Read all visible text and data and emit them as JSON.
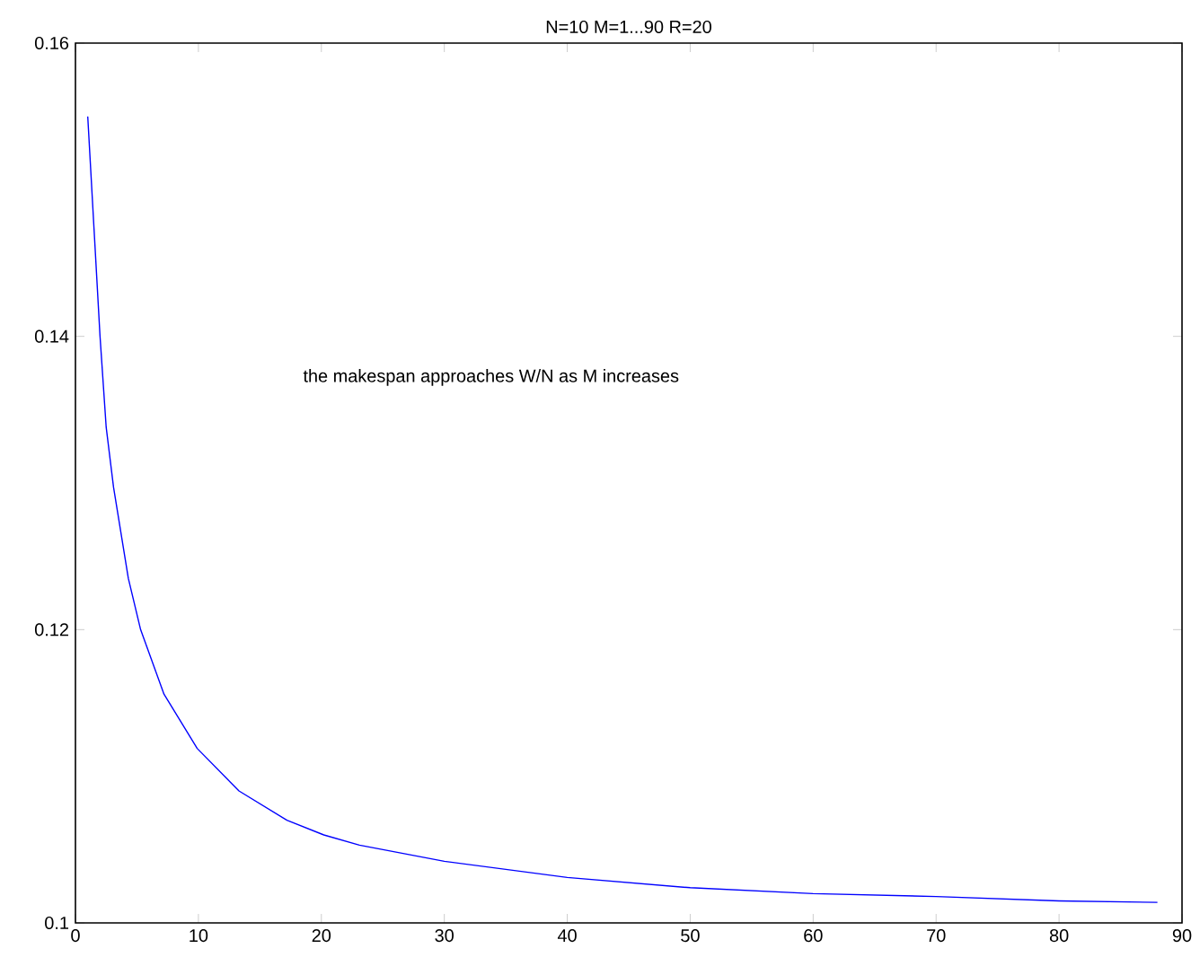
{
  "chart_data": {
    "type": "line",
    "title": "N=10 M=1...90 R=20",
    "x": [
      1,
      2,
      2.5,
      3.1,
      4.3,
      5.3,
      7.2,
      9.9,
      13.3,
      17.2,
      20.2,
      23.1,
      30,
      40,
      50,
      60,
      70,
      80,
      88
    ],
    "series": [
      {
        "color": "#0000ff",
        "values": [
          0.155,
          0.14,
          0.1338,
          0.1297,
          0.1235,
          0.12,
          0.1156,
          0.1119,
          0.109,
          0.107,
          0.106,
          0.1053,
          0.1042,
          0.1031,
          0.1024,
          0.102,
          0.1018,
          0.1015,
          0.1014
        ]
      }
    ],
    "xlim": [
      0,
      90
    ],
    "xticks": [
      0,
      10,
      20,
      30,
      40,
      50,
      60,
      70,
      80,
      90
    ],
    "ylim": [
      0.1,
      0.16
    ],
    "yticks": [
      0.1,
      0.12,
      0.14,
      0.16
    ],
    "annotations": [
      "the makespan approaches W/N as M increases"
    ],
    "grid": false,
    "marker": "none",
    "line_style": "solid"
  }
}
